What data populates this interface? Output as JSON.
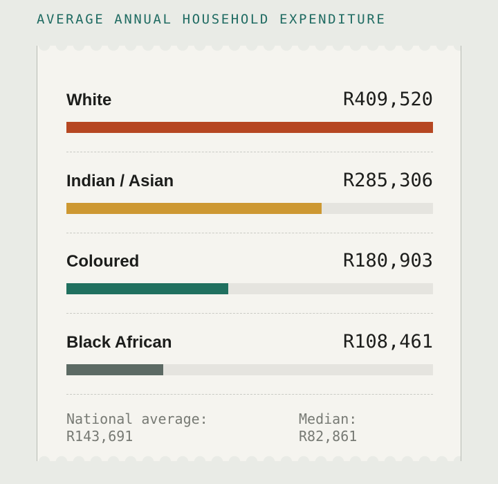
{
  "title": "AVERAGE ANNUAL HOUSEHOLD EXPENDITURE",
  "chart_data": {
    "type": "bar",
    "orientation": "horizontal",
    "title": "AVERAGE ANNUAL HOUSEHOLD EXPENDITURE",
    "categories": [
      "White",
      "Indian / Asian",
      "Coloured",
      "Black African"
    ],
    "values": [
      409520,
      285306,
      180903,
      108461
    ],
    "value_labels": [
      "R409,520",
      "R285,306",
      "R180,903",
      "R108,461"
    ],
    "colors": [
      "#b64722",
      "#cd9832",
      "#20705f",
      "#5c6a64"
    ],
    "xlim": [
      0,
      409520
    ],
    "grid": false
  },
  "footer": {
    "national_label": "National average:",
    "national_value": "R143,691",
    "median_label": "Median:",
    "median_value": "R82,861"
  }
}
